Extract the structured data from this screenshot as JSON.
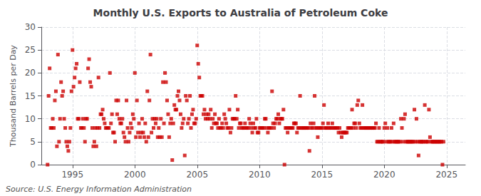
{
  "chart_data": {
    "type": "scatter",
    "title": "Monthly U.S. Exports to Australia of Petroleum Coke",
    "ylabel": "Thousand Barrels per Day",
    "annotations": [
      "Source: U.S. Energy Information Administration"
    ],
    "color": "#cc0000",
    "marker": "square",
    "grid": true,
    "xlim": [
      1992.5,
      2026.5
    ],
    "xticks": [
      1995,
      2000,
      2005,
      2010,
      2015,
      2020,
      2025
    ],
    "ylim": [
      0,
      30
    ],
    "yticks": [
      0,
      5,
      10,
      15,
      20,
      25,
      30
    ],
    "x": [
      1993.0,
      1993.083,
      1993.167,
      1993.25,
      1993.333,
      1993.417,
      1993.5,
      1993.583,
      1993.667,
      1993.75,
      1993.833,
      1993.917,
      1994.0,
      1994.083,
      1994.167,
      1994.25,
      1994.333,
      1994.417,
      1994.5,
      1994.583,
      1994.667,
      1994.75,
      1994.833,
      1994.917,
      1995.0,
      1995.083,
      1995.167,
      1995.25,
      1995.333,
      1995.417,
      1995.5,
      1995.583,
      1995.667,
      1995.75,
      1995.833,
      1995.917,
      1996.0,
      1996.083,
      1996.167,
      1996.25,
      1996.333,
      1996.417,
      1996.5,
      1996.583,
      1996.667,
      1996.75,
      1996.833,
      1996.917,
      1997.0,
      1997.083,
      1997.167,
      1997.25,
      1997.333,
      1997.417,
      1997.5,
      1997.583,
      1997.667,
      1997.75,
      1997.833,
      1997.917,
      1998.0,
      1998.083,
      1998.167,
      1998.25,
      1998.333,
      1998.417,
      1998.5,
      1998.583,
      1998.667,
      1998.75,
      1998.833,
      1998.917,
      1999.0,
      1999.083,
      1999.167,
      1999.25,
      1999.333,
      1999.417,
      1999.5,
      1999.583,
      1999.667,
      1999.75,
      1999.833,
      1999.917,
      2000.0,
      2000.083,
      2000.167,
      2000.25,
      2000.333,
      2000.417,
      2000.5,
      2000.583,
      2000.667,
      2000.75,
      2000.833,
      2000.917,
      2001.0,
      2001.083,
      2001.167,
      2001.25,
      2001.333,
      2001.417,
      2001.5,
      2001.583,
      2001.667,
      2001.75,
      2001.833,
      2001.917,
      2002.0,
      2002.083,
      2002.167,
      2002.25,
      2002.333,
      2002.417,
      2002.5,
      2002.583,
      2002.667,
      2002.75,
      2002.833,
      2002.917,
      2003.0,
      2003.083,
      2003.167,
      2003.25,
      2003.333,
      2003.417,
      2003.5,
      2003.583,
      2003.667,
      2003.75,
      2003.833,
      2003.917,
      2004.0,
      2004.083,
      2004.167,
      2004.25,
      2004.333,
      2004.417,
      2004.5,
      2004.583,
      2004.667,
      2004.75,
      2004.833,
      2004.917,
      2005.0,
      2005.083,
      2005.167,
      2005.25,
      2005.333,
      2005.417,
      2005.5,
      2005.583,
      2005.667,
      2005.75,
      2005.833,
      2005.917,
      2006.0,
      2006.083,
      2006.167,
      2006.25,
      2006.333,
      2006.417,
      2006.5,
      2006.583,
      2006.667,
      2006.75,
      2006.833,
      2006.917,
      2007.0,
      2007.083,
      2007.167,
      2007.25,
      2007.333,
      2007.417,
      2007.5,
      2007.583,
      2007.667,
      2007.75,
      2007.833,
      2007.917,
      2008.0,
      2008.083,
      2008.167,
      2008.25,
      2008.333,
      2008.417,
      2008.5,
      2008.583,
      2008.667,
      2008.75,
      2008.833,
      2008.917,
      2009.0,
      2009.083,
      2009.167,
      2009.25,
      2009.333,
      2009.417,
      2009.5,
      2009.583,
      2009.667,
      2009.75,
      2009.833,
      2009.917,
      2010.0,
      2010.083,
      2010.167,
      2010.25,
      2010.333,
      2010.417,
      2010.5,
      2010.583,
      2010.667,
      2010.75,
      2010.833,
      2010.917,
      2011.0,
      2011.083,
      2011.167,
      2011.25,
      2011.333,
      2011.417,
      2011.5,
      2011.583,
      2011.667,
      2011.75,
      2011.833,
      2011.917,
      2012.0,
      2012.083,
      2012.167,
      2012.25,
      2012.333,
      2012.417,
      2012.5,
      2012.583,
      2012.667,
      2012.75,
      2012.833,
      2012.917,
      2013.0,
      2013.083,
      2013.167,
      2013.25,
      2013.333,
      2013.417,
      2013.5,
      2013.583,
      2013.667,
      2013.75,
      2013.833,
      2013.917,
      2014.0,
      2014.083,
      2014.167,
      2014.25,
      2014.333,
      2014.417,
      2014.5,
      2014.583,
      2014.667,
      2014.75,
      2014.833,
      2014.917,
      2015.0,
      2015.083,
      2015.167,
      2015.25,
      2015.333,
      2015.417,
      2015.5,
      2015.583,
      2015.667,
      2015.75,
      2015.833,
      2015.917,
      2016.0,
      2016.083,
      2016.167,
      2016.25,
      2016.333,
      2016.417,
      2016.5,
      2016.583,
      2016.667,
      2016.75,
      2016.833,
      2016.917,
      2017.0,
      2017.083,
      2017.167,
      2017.25,
      2017.333,
      2017.417,
      2017.5,
      2017.583,
      2017.667,
      2017.75,
      2017.833,
      2017.917,
      2018.0,
      2018.083,
      2018.167,
      2018.25,
      2018.333,
      2018.417,
      2018.5,
      2018.583,
      2018.667,
      2018.75,
      2018.833,
      2018.917,
      2019.0,
      2019.083,
      2019.167,
      2019.25,
      2019.333,
      2019.417,
      2019.5,
      2019.583,
      2019.667,
      2019.75,
      2019.833,
      2019.917,
      2020.0,
      2020.083,
      2020.167,
      2020.25,
      2020.333,
      2020.417,
      2020.5,
      2020.583,
      2020.667,
      2020.75,
      2020.833,
      2020.917,
      2021.0,
      2021.083,
      2021.167,
      2021.25,
      2021.333,
      2021.417,
      2021.5,
      2021.583,
      2021.667,
      2021.75,
      2021.833,
      2021.917,
      2022.0,
      2022.083,
      2022.167,
      2022.25,
      2022.333,
      2022.417,
      2022.5,
      2022.583,
      2022.667,
      2022.75,
      2022.833,
      2022.917,
      2023.0,
      2023.083,
      2023.167,
      2023.25,
      2023.333,
      2023.417,
      2023.5,
      2023.583,
      2023.667,
      2023.75,
      2023.833,
      2023.917,
      2024.0,
      2024.083,
      2024.167,
      2024.25,
      2024.333,
      2024.417,
      2024.5,
      2024.583,
      2024.667,
      2024.75
    ],
    "values": [
      0,
      15,
      21,
      8,
      8,
      10,
      8,
      14,
      16,
      4,
      24,
      5,
      10,
      18,
      15,
      16,
      10,
      8,
      5,
      4,
      3,
      5,
      8,
      16,
      25,
      17,
      19,
      21,
      22,
      10,
      10,
      18,
      8,
      8,
      10,
      8,
      5,
      10,
      10,
      21,
      23,
      18,
      17,
      8,
      4,
      5,
      8,
      4,
      8,
      19,
      8,
      11,
      11,
      12,
      10,
      9,
      8,
      8,
      8,
      8,
      20,
      9,
      11,
      7,
      7,
      5,
      14,
      11,
      14,
      10,
      9,
      9,
      10,
      7,
      6,
      5,
      14,
      8,
      5,
      7,
      9,
      8,
      11,
      10,
      20,
      6,
      14,
      7,
      9,
      6,
      7,
      10,
      7,
      6,
      9,
      5,
      16,
      6,
      14,
      24,
      7,
      10,
      8,
      10,
      9,
      10,
      6,
      8,
      6,
      10,
      6,
      18,
      9,
      20,
      18,
      14,
      11,
      6,
      9,
      10,
      1,
      9,
      13,
      12,
      12,
      15,
      16,
      14,
      11,
      8,
      9,
      10,
      2,
      15,
      14,
      9,
      10,
      15,
      8,
      11,
      12,
      9,
      9,
      10,
      26,
      22,
      19,
      15,
      15,
      15,
      11,
      12,
      10,
      11,
      10,
      11,
      10,
      12,
      8,
      10,
      9,
      11,
      9,
      9,
      8,
      10,
      8,
      8,
      9,
      8,
      11,
      10,
      9,
      8,
      8,
      12,
      7,
      8,
      10,
      10,
      10,
      15,
      10,
      12,
      8,
      9,
      9,
      8,
      8,
      8,
      9,
      8,
      8,
      8,
      10,
      9,
      8,
      7,
      9,
      8,
      8,
      10,
      7,
      7,
      8,
      8,
      8,
      8,
      8,
      10,
      10,
      8,
      7,
      8,
      8,
      8,
      16,
      9,
      8,
      9,
      10,
      10,
      11,
      9,
      10,
      10,
      10,
      12,
      0,
      8,
      8,
      7,
      8,
      8,
      8,
      8,
      8,
      9,
      9,
      9,
      7,
      8,
      8,
      15,
      8,
      8,
      8,
      8,
      8,
      8,
      8,
      8,
      3,
      9,
      8,
      8,
      9,
      15,
      8,
      8,
      6,
      8,
      8,
      8,
      8,
      9,
      13,
      8,
      8,
      8,
      9,
      8,
      8,
      8,
      9,
      8,
      8,
      8,
      8,
      8,
      7,
      8,
      7,
      6,
      7,
      7,
      7,
      7,
      7,
      8,
      8,
      8,
      8,
      12,
      8,
      9,
      9,
      8,
      13,
      14,
      9,
      8,
      8,
      13,
      8,
      8,
      8,
      8,
      8,
      8,
      8,
      8,
      8,
      8,
      8,
      8,
      9,
      5,
      5,
      8,
      5,
      5,
      5,
      5,
      8,
      9,
      5,
      8,
      5,
      5,
      5,
      8,
      5,
      9,
      5,
      5,
      5,
      5,
      5,
      5,
      10,
      8,
      5,
      10,
      11,
      5,
      5,
      5,
      5,
      5,
      5,
      5,
      5,
      12,
      5,
      10,
      5,
      2,
      5,
      5,
      5,
      5,
      5,
      13,
      5,
      5,
      5,
      12,
      6,
      5,
      5,
      5,
      5,
      5,
      5,
      5,
      5,
      5,
      5,
      5,
      0,
      5
    ]
  }
}
